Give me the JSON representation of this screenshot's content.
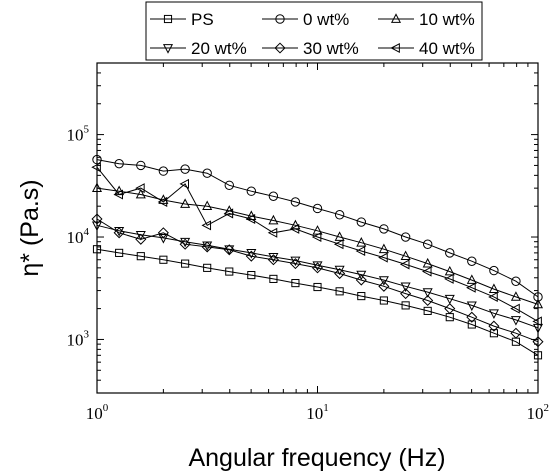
{
  "chart_data": {
    "type": "line",
    "title": "",
    "xlabel": "Angular frequency (Hz)",
    "ylabel": "η* (Pa.s)",
    "x_scale": "log",
    "y_scale": "log",
    "xlim": [
      1,
      100
    ],
    "ylim": [
      300,
      500000
    ],
    "grid": false,
    "legend_position": "top",
    "x_ticks": [
      {
        "base": "10",
        "exp": "0",
        "value": 1
      },
      {
        "base": "10",
        "exp": "1",
        "value": 10
      },
      {
        "base": "10",
        "exp": "2",
        "value": 100
      }
    ],
    "y_ticks": [
      {
        "base": "10",
        "exp": "3",
        "value": 1000
      },
      {
        "base": "10",
        "exp": "4",
        "value": 10000
      },
      {
        "base": "10",
        "exp": "5",
        "value": 100000
      }
    ],
    "series": [
      {
        "name": "PS",
        "marker": "square",
        "x": [
          1,
          1.26,
          1.58,
          2,
          2.51,
          3.16,
          3.98,
          5.01,
          6.31,
          7.94,
          10,
          12.6,
          15.8,
          20,
          25.1,
          31.6,
          39.8,
          50.1,
          63.1,
          79.4,
          100
        ],
        "y": [
          7600,
          7000,
          6500,
          6000,
          5500,
          5000,
          4600,
          4250,
          3900,
          3550,
          3250,
          2950,
          2650,
          2400,
          2150,
          1900,
          1650,
          1400,
          1150,
          950,
          700
        ]
      },
      {
        "name": "0 wt%",
        "marker": "circle",
        "x": [
          1,
          1.26,
          1.58,
          2,
          2.51,
          3.16,
          3.98,
          5.01,
          6.31,
          7.94,
          10,
          12.6,
          15.8,
          20,
          25.1,
          31.6,
          39.8,
          50.1,
          63.1,
          79.4,
          100
        ],
        "y": [
          57000,
          52000,
          50000,
          44000,
          46000,
          42000,
          32000,
          28000,
          25000,
          22000,
          19000,
          16500,
          14000,
          12000,
          10000,
          8500,
          7000,
          5800,
          4700,
          3700,
          2600
        ]
      },
      {
        "name": "10 wt%",
        "marker": "triangle-up",
        "x": [
          1,
          1.26,
          1.58,
          2,
          2.51,
          3.16,
          3.98,
          5.01,
          6.31,
          7.94,
          10,
          12.6,
          15.8,
          20,
          25.1,
          31.6,
          39.8,
          50.1,
          63.1,
          79.4,
          100
        ],
        "y": [
          30000,
          28000,
          26000,
          23000,
          21000,
          20000,
          18000,
          16000,
          14500,
          13000,
          11500,
          10000,
          8800,
          7600,
          6500,
          5500,
          4600,
          3800,
          3100,
          2600,
          2200
        ]
      },
      {
        "name": "20 wt%",
        "marker": "triangle-down",
        "x": [
          1,
          1.26,
          1.58,
          2,
          2.51,
          3.16,
          3.98,
          5.01,
          6.31,
          7.94,
          10,
          12.6,
          15.8,
          20,
          25.1,
          31.6,
          39.8,
          50.1,
          63.1,
          79.4,
          100
        ],
        "y": [
          13000,
          11500,
          10500,
          9800,
          9000,
          8300,
          7600,
          7000,
          6400,
          5900,
          5300,
          4800,
          4300,
          3800,
          3300,
          2900,
          2500,
          2150,
          1800,
          1550,
          1300
        ]
      },
      {
        "name": "30 wt%",
        "marker": "diamond",
        "x": [
          1,
          1.26,
          1.58,
          2,
          2.51,
          3.16,
          3.98,
          5.01,
          6.31,
          7.94,
          10,
          12.6,
          15.8,
          20,
          25.1,
          31.6,
          39.8,
          50.1,
          63.1,
          79.4,
          100
        ],
        "y": [
          15000,
          11000,
          9500,
          11000,
          8500,
          8000,
          7500,
          6500,
          6000,
          5500,
          5000,
          4400,
          3800,
          3300,
          2800,
          2400,
          2000,
          1650,
          1350,
          1150,
          950
        ]
      },
      {
        "name": "40 wt%",
        "marker": "triangle-left",
        "x": [
          1,
          1.26,
          1.58,
          2,
          2.51,
          3.16,
          3.98,
          5.01,
          6.31,
          7.94,
          10,
          12.6,
          15.8,
          20,
          25.1,
          31.6,
          39.8,
          50.1,
          63.1,
          79.4,
          100
        ],
        "y": [
          48000,
          26000,
          30000,
          22000,
          33000,
          13000,
          17000,
          15000,
          11000,
          12000,
          10000,
          8500,
          7300,
          6300,
          5400,
          4600,
          3900,
          3200,
          2600,
          2000,
          1500
        ]
      }
    ]
  }
}
